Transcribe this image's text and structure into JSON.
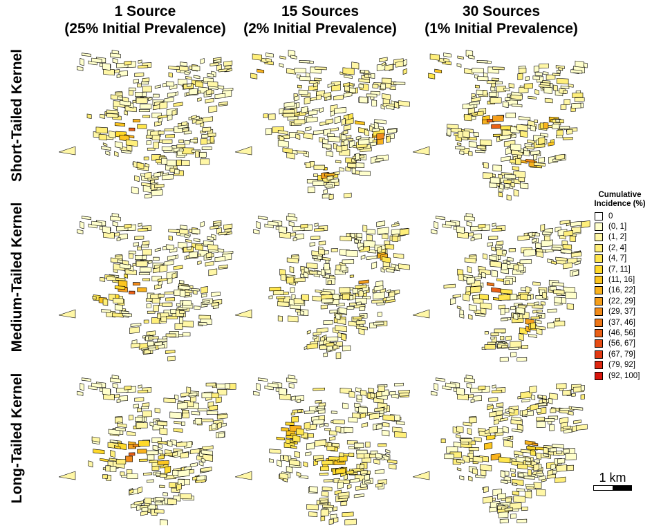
{
  "columns": [
    {
      "line1": "1 Source",
      "line2": "(25% Initial Prevalence)"
    },
    {
      "line1": "15 Sources",
      "line2": "(2% Initial Prevalence)"
    },
    {
      "line1": "30 Sources",
      "line2": "(1% Initial Prevalence)"
    }
  ],
  "rows": [
    {
      "label": "Short-Tailed Kernel"
    },
    {
      "label": "Medium-Tailed Kernel"
    },
    {
      "label": "Long-Tailed Kernel"
    }
  ],
  "legend": {
    "title_line1": "Cumulative",
    "title_line2": "Incidence (%)",
    "items": [
      {
        "label": "0",
        "color": "#ffffff"
      },
      {
        "label": "(0, 1]",
        "color": "#ffffcc"
      },
      {
        "label": "(1, 2]",
        "color": "#fff7a6"
      },
      {
        "label": "(2, 4]",
        "color": "#ffef7a"
      },
      {
        "label": "(4, 7]",
        "color": "#ffe64d"
      },
      {
        "label": "(7, 11]",
        "color": "#ffd92a"
      },
      {
        "label": "(11, 16]",
        "color": "#fcc620"
      },
      {
        "label": "(16, 22]",
        "color": "#f9b31e"
      },
      {
        "label": "(22, 29]",
        "color": "#f59f1c"
      },
      {
        "label": "(29, 37]",
        "color": "#f28b1a"
      },
      {
        "label": "(37, 46]",
        "color": "#ee7618"
      },
      {
        "label": "(46, 56]",
        "color": "#ea6016"
      },
      {
        "label": "(56, 67]",
        "color": "#e64c14"
      },
      {
        "label": "(67, 79]",
        "color": "#e23912"
      },
      {
        "label": "(79, 92]",
        "color": "#de2710"
      },
      {
        "label": "(92, 100]",
        "color": "#d9150c"
      }
    ]
  },
  "scalebar": {
    "label": "1 km",
    "colors": [
      "#ffffff",
      "#000000"
    ]
  }
}
